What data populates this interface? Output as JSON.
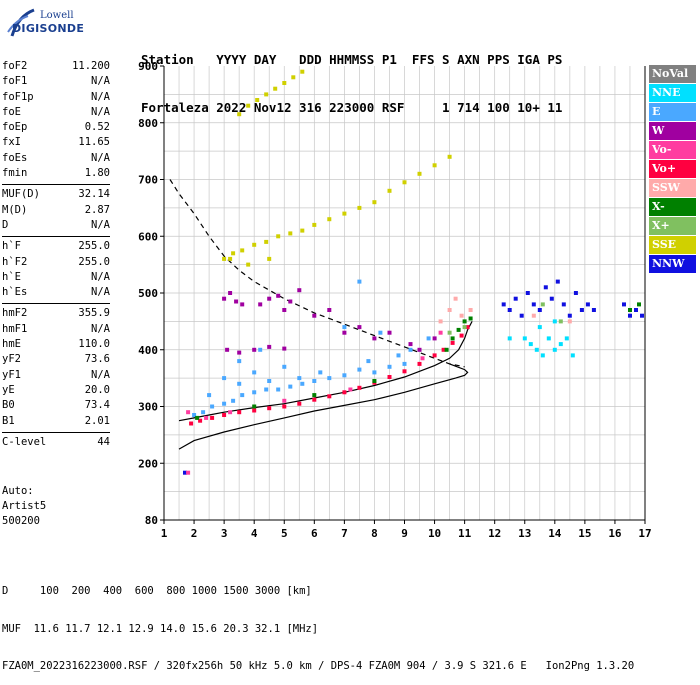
{
  "logo": {
    "line1": "Lowell",
    "line2": "DIGISONDE"
  },
  "header": {
    "row1": "Station   YYYY DAY   DDD HHMMSS P1  FFS S AXN PPS IGA PS",
    "row2": "Fortaleza 2022 Nov12 316 223000 RSF     1 714 100 10+ 11"
  },
  "params": [
    [
      {
        "k": "foF2",
        "v": "11.200"
      },
      {
        "k": "foF1",
        "v": "N/A"
      },
      {
        "k": "foF1p",
        "v": "N/A"
      },
      {
        "k": "foE",
        "v": "N/A"
      },
      {
        "k": "foEp",
        "v": "0.52"
      },
      {
        "k": "fxI",
        "v": "11.65"
      },
      {
        "k": "foEs",
        "v": "N/A"
      },
      {
        "k": "fmin",
        "v": "1.80"
      }
    ],
    [
      {
        "k": "MUF(D)",
        "v": "32.14"
      },
      {
        "k": "M(D)",
        "v": "2.87"
      },
      {
        "k": "D",
        "v": "N/A"
      }
    ],
    [
      {
        "k": "h`F",
        "v": "255.0"
      },
      {
        "k": "h`F2",
        "v": "255.0"
      },
      {
        "k": "h`E",
        "v": "N/A"
      },
      {
        "k": "h`Es",
        "v": "N/A"
      }
    ],
    [
      {
        "k": "hmF2",
        "v": "355.9"
      },
      {
        "k": "hmF1",
        "v": "N/A"
      },
      {
        "k": "hmE",
        "v": "110.0"
      },
      {
        "k": "yF2",
        "v": "73.6"
      },
      {
        "k": "yF1",
        "v": "N/A"
      },
      {
        "k": "yE",
        "v": "20.0"
      },
      {
        "k": "B0",
        "v": "73.4"
      },
      {
        "k": "B1",
        "v": "2.01"
      }
    ],
    [
      {
        "k": "C-level",
        "v": "44"
      }
    ]
  ],
  "auto": {
    "line1": "Auto:",
    "line2": "Artist5",
    "line3": "500200"
  },
  "legend": [
    {
      "label": "NoVal",
      "color": "#808080"
    },
    {
      "label": "NNE",
      "color": "#00e0ff"
    },
    {
      "label": "E",
      "color": "#4aa8ff"
    },
    {
      "label": "W",
      "color": "#a000a0"
    },
    {
      "label": "Vo-",
      "color": "#ff3ca0"
    },
    {
      "label": "Vo+",
      "color": "#ff0040"
    },
    {
      "label": "SSW",
      "color": "#ffaaaa"
    },
    {
      "label": "X-",
      "color": "#008000"
    },
    {
      "label": "X+",
      "color": "#80c060"
    },
    {
      "label": "SSE",
      "color": "#d0d000"
    },
    {
      "label": "NNW",
      "color": "#1010e0"
    }
  ],
  "footer": {
    "line1": "D     100  200  400  600  800 1000 1500 3000 [km]",
    "line2": "MUF  11.6 11.7 12.1 12.9 14.0 15.6 20.3 32.1 [MHz]",
    "line3": "FZA0M_2022316223000.RSF / 320fx256h 50 kHz 5.0 km / DPS-4 FZA0M 904 / 3.9 S 321.6 E   Ion2Png 1.3.20"
  },
  "chart_data": {
    "type": "scatter",
    "xlim": [
      1,
      17
    ],
    "ylim": [
      80,
      900
    ],
    "x_ticks": [
      1,
      2,
      3,
      4,
      5,
      6,
      7,
      8,
      9,
      10,
      11,
      12,
      13,
      14,
      15,
      16,
      17
    ],
    "y_ticks": [
      80,
      200,
      300,
      400,
      500,
      600,
      700,
      800,
      900
    ],
    "grid": true,
    "legend_position": "right",
    "series": [
      {
        "name": "E",
        "color": "#4aa8ff",
        "points": [
          [
            2.0,
            285
          ],
          [
            2.3,
            290
          ],
          [
            2.6,
            300
          ],
          [
            3.0,
            305
          ],
          [
            3.3,
            310
          ],
          [
            3.6,
            320
          ],
          [
            4.0,
            325
          ],
          [
            4.4,
            330
          ],
          [
            4.8,
            330
          ],
          [
            5.2,
            335
          ],
          [
            5.6,
            340
          ],
          [
            6.0,
            345
          ],
          [
            6.5,
            350
          ],
          [
            7.0,
            355
          ],
          [
            7.5,
            365
          ],
          [
            8.0,
            360
          ],
          [
            8.5,
            370
          ],
          [
            9.0,
            375
          ],
          [
            2.5,
            320
          ],
          [
            3.5,
            340
          ],
          [
            4.5,
            345
          ],
          [
            5.5,
            350
          ],
          [
            6.2,
            360
          ],
          [
            7.8,
            380
          ],
          [
            8.8,
            390
          ],
          [
            3.0,
            350
          ],
          [
            4.0,
            360
          ],
          [
            5.0,
            370
          ],
          [
            3.5,
            380
          ],
          [
            4.2,
            400
          ],
          [
            9.2,
            400
          ],
          [
            9.8,
            420
          ],
          [
            7.0,
            440
          ],
          [
            7.5,
            520
          ],
          [
            8.2,
            430
          ]
        ]
      },
      {
        "name": "Vo+",
        "color": "#ff0040",
        "points": [
          [
            1.9,
            270
          ],
          [
            2.2,
            275
          ],
          [
            2.6,
            280
          ],
          [
            3.0,
            285
          ],
          [
            3.5,
            290
          ],
          [
            4.0,
            293
          ],
          [
            4.5,
            297
          ],
          [
            5.0,
            300
          ],
          [
            5.5,
            305
          ],
          [
            6.0,
            312
          ],
          [
            6.5,
            318
          ],
          [
            7.0,
            325
          ],
          [
            7.5,
            333
          ],
          [
            8.0,
            342
          ],
          [
            8.5,
            352
          ],
          [
            9.0,
            362
          ],
          [
            9.5,
            375
          ],
          [
            10.0,
            390
          ],
          [
            10.3,
            400
          ],
          [
            10.6,
            412
          ],
          [
            10.9,
            425
          ],
          [
            11.1,
            440
          ]
        ]
      },
      {
        "name": "W",
        "color": "#a000a0",
        "points": [
          [
            3.0,
            490
          ],
          [
            3.2,
            500
          ],
          [
            3.4,
            485
          ],
          [
            3.6,
            480
          ],
          [
            4.2,
            480
          ],
          [
            4.5,
            490
          ],
          [
            4.8,
            495
          ],
          [
            5.0,
            470
          ],
          [
            5.2,
            485
          ],
          [
            5.5,
            505
          ],
          [
            6.0,
            460
          ],
          [
            6.5,
            470
          ],
          [
            7.0,
            430
          ],
          [
            7.5,
            440
          ],
          [
            8.0,
            420
          ],
          [
            8.5,
            430
          ],
          [
            9.2,
            410
          ],
          [
            3.1,
            400
          ],
          [
            3.5,
            395
          ],
          [
            4.0,
            400
          ],
          [
            4.5,
            405
          ],
          [
            5.0,
            402
          ],
          [
            9.5,
            400
          ],
          [
            10.0,
            420
          ]
        ]
      },
      {
        "name": "SSE",
        "color": "#d0d000",
        "points": [
          [
            3.0,
            560
          ],
          [
            3.3,
            570
          ],
          [
            3.6,
            575
          ],
          [
            4.0,
            585
          ],
          [
            4.4,
            590
          ],
          [
            4.8,
            600
          ],
          [
            5.2,
            605
          ],
          [
            5.6,
            610
          ],
          [
            6.0,
            620
          ],
          [
            6.5,
            630
          ],
          [
            7.0,
            640
          ],
          [
            7.5,
            650
          ],
          [
            8.0,
            660
          ],
          [
            8.5,
            680
          ],
          [
            9.0,
            695
          ],
          [
            9.5,
            710
          ],
          [
            10.0,
            725
          ],
          [
            10.5,
            740
          ],
          [
            3.5,
            815
          ],
          [
            3.8,
            830
          ],
          [
            4.1,
            840
          ],
          [
            4.4,
            850
          ],
          [
            4.7,
            860
          ],
          [
            5.0,
            870
          ],
          [
            5.3,
            880
          ],
          [
            5.6,
            890
          ],
          [
            3.2,
            560
          ],
          [
            3.8,
            550
          ],
          [
            4.5,
            560
          ]
        ]
      },
      {
        "name": "NNW",
        "color": "#1010e0",
        "points": [
          [
            12.3,
            480
          ],
          [
            12.5,
            470
          ],
          [
            12.7,
            490
          ],
          [
            12.9,
            460
          ],
          [
            13.1,
            500
          ],
          [
            13.3,
            480
          ],
          [
            13.5,
            470
          ],
          [
            13.7,
            510
          ],
          [
            13.9,
            490
          ],
          [
            14.1,
            520
          ],
          [
            14.3,
            480
          ],
          [
            14.5,
            460
          ],
          [
            14.7,
            500
          ],
          [
            14.9,
            470
          ],
          [
            15.1,
            480
          ],
          [
            15.3,
            470
          ],
          [
            16.3,
            480
          ],
          [
            16.5,
            460
          ],
          [
            16.7,
            470
          ],
          [
            16.9,
            460
          ],
          [
            1.7,
            180
          ]
        ]
      },
      {
        "name": "NNE",
        "color": "#00e0ff",
        "points": [
          [
            13.0,
            420
          ],
          [
            13.2,
            410
          ],
          [
            13.4,
            400
          ],
          [
            13.6,
            390
          ],
          [
            13.8,
            420
          ],
          [
            14.0,
            400
          ],
          [
            14.2,
            410
          ],
          [
            14.4,
            420
          ],
          [
            14.6,
            390
          ],
          [
            14.0,
            450
          ],
          [
            13.5,
            440
          ],
          [
            12.5,
            420
          ]
        ]
      },
      {
        "name": "X-",
        "color": "#008000",
        "points": [
          [
            10.4,
            400
          ],
          [
            10.6,
            420
          ],
          [
            10.8,
            435
          ],
          [
            11.0,
            450
          ],
          [
            11.2,
            455
          ],
          [
            16.5,
            470
          ],
          [
            16.8,
            480
          ],
          [
            2.1,
            280
          ],
          [
            4.0,
            300
          ],
          [
            6.0,
            320
          ],
          [
            8.0,
            345
          ]
        ]
      },
      {
        "name": "SSW",
        "color": "#ffaaaa",
        "points": [
          [
            10.2,
            450
          ],
          [
            10.5,
            470
          ],
          [
            10.7,
            490
          ],
          [
            10.9,
            460
          ],
          [
            11.2,
            470
          ],
          [
            13.3,
            460
          ],
          [
            14.5,
            450
          ]
        ]
      },
      {
        "name": "X+",
        "color": "#80c060",
        "points": [
          [
            10.5,
            430
          ],
          [
            11.0,
            440
          ],
          [
            13.6,
            480
          ],
          [
            14.2,
            450
          ]
        ]
      },
      {
        "name": "Vo-",
        "color": "#ff3ca0",
        "points": [
          [
            1.8,
            290
          ],
          [
            2.4,
            280
          ],
          [
            3.2,
            290
          ],
          [
            5.0,
            310
          ],
          [
            7.2,
            330
          ],
          [
            9.6,
            385
          ],
          [
            10.2,
            430
          ],
          [
            1.8,
            180
          ]
        ]
      }
    ],
    "curves": [
      {
        "name": "",
        "color": "#000000",
        "style": "solid",
        "points": [
          [
            1.5,
            275
          ],
          [
            2.0,
            280
          ],
          [
            2.5,
            285
          ],
          [
            3.0,
            290
          ],
          [
            4.0,
            298
          ],
          [
            5.0,
            305
          ],
          [
            6.0,
            315
          ],
          [
            7.0,
            325
          ],
          [
            8.0,
            337
          ],
          [
            9.0,
            352
          ],
          [
            10.0,
            372
          ],
          [
            10.5,
            385
          ],
          [
            10.8,
            400
          ],
          [
            11.0,
            420
          ],
          [
            11.1,
            435
          ],
          [
            11.2,
            445
          ],
          [
            11.25,
            450
          ]
        ]
      },
      {
        "name": "",
        "color": "#000000",
        "style": "solid",
        "points": [
          [
            1.5,
            225
          ],
          [
            2.0,
            240
          ],
          [
            3.0,
            255
          ],
          [
            4.0,
            268
          ],
          [
            5.0,
            280
          ],
          [
            6.0,
            292
          ],
          [
            7.0,
            302
          ],
          [
            8.0,
            312
          ],
          [
            9.0,
            325
          ],
          [
            10.0,
            340
          ],
          [
            10.7,
            350
          ],
          [
            11.0,
            355
          ],
          [
            11.1,
            360
          ],
          [
            11.0,
            365
          ],
          [
            10.5,
            375
          ]
        ]
      },
      {
        "name": "",
        "color": "#000000",
        "style": "dashed",
        "points": [
          [
            1.2,
            700
          ],
          [
            1.5,
            675
          ],
          [
            2.0,
            640
          ],
          [
            2.5,
            600
          ],
          [
            3.0,
            565
          ],
          [
            3.5,
            540
          ],
          [
            4.0,
            520
          ],
          [
            5.0,
            490
          ],
          [
            6.0,
            465
          ],
          [
            7.0,
            445
          ],
          [
            8.0,
            425
          ],
          [
            9.0,
            405
          ],
          [
            10.0,
            385
          ],
          [
            10.5,
            375
          ],
          [
            11.0,
            370
          ]
        ]
      }
    ]
  }
}
